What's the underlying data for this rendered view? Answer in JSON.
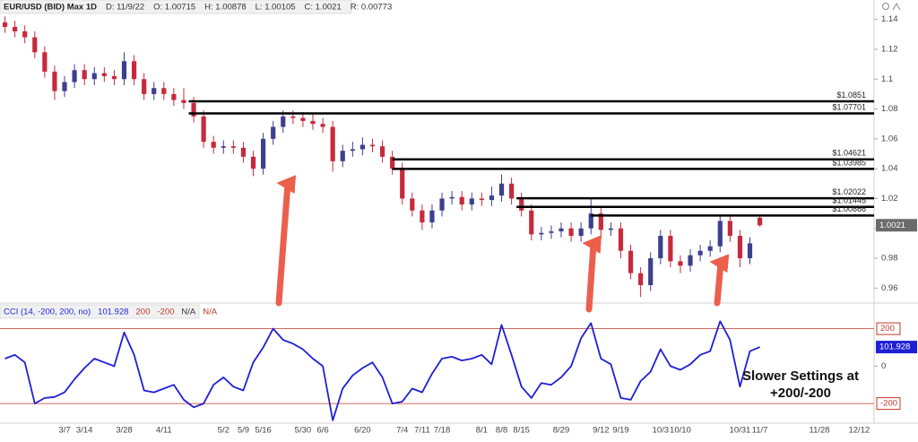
{
  "chart_data": [
    {
      "type": "candlestick",
      "title": "EUR/USD (BID) Max 1D",
      "info": [
        "D: 11/9/22",
        "O: 1.00715",
        "H: 1.00878",
        "L: 1.00105",
        "C: 1.0021",
        "R: 0.00773"
      ],
      "categories": [
        null,
        null,
        null,
        null,
        null,
        null,
        "3/7",
        null,
        "3/14",
        null,
        null,
        null,
        "3/28",
        null,
        null,
        null,
        "4/11",
        null,
        null,
        null,
        null,
        null,
        "5/2",
        null,
        "5/9",
        null,
        "5/16",
        null,
        null,
        null,
        "5/30",
        null,
        "6/6",
        null,
        null,
        null,
        "6/20",
        null,
        null,
        null,
        "7/4",
        null,
        "7/11",
        null,
        "7/18",
        null,
        null,
        null,
        "8/1",
        null,
        "8/8",
        null,
        "8/15",
        null,
        null,
        null,
        "8/29",
        null,
        null,
        null,
        "9/12",
        null,
        "9/19",
        null,
        null,
        null,
        "10/3",
        null,
        "10/10",
        null,
        null,
        null,
        null,
        null,
        "10/31",
        null,
        "11/7",
        null,
        null,
        null,
        null,
        null,
        "11/28",
        null,
        null,
        null,
        "12/12",
        null
      ],
      "open": [
        1.138,
        1.135,
        1.132,
        1.128,
        1.118,
        1.105,
        1.092,
        1.098,
        1.106,
        1.1,
        1.104,
        1.102,
        1.1,
        1.112,
        1.1,
        1.09,
        1.094,
        1.09,
        1.086,
        1.084,
        1.075,
        1.058,
        1.054,
        1.055,
        1.054,
        1.048,
        1.04,
        1.06,
        1.068,
        1.075,
        1.074,
        1.072,
        1.07,
        1.068,
        1.045,
        1.052,
        1.053,
        1.056,
        1.055,
        1.048,
        1.04,
        1.02,
        1.012,
        1.004,
        1.012,
        1.02,
        1.021,
        1.016,
        1.02,
        1.019,
        1.022,
        1.03,
        1.02,
        1.012,
        0.996,
        0.997,
        0.998,
        1.0,
        0.995,
        1.0,
        1.01,
        0.999,
        1.0,
        0.985,
        0.97,
        0.962,
        0.98,
        0.995,
        0.978,
        0.975,
        0.982,
        0.985,
        0.988,
        1.005,
        0.995,
        0.98,
        1.00715,
        null,
        null,
        null,
        null,
        null,
        null,
        null,
        null,
        null,
        null,
        null
      ],
      "high": [
        1.142,
        1.139,
        1.136,
        1.132,
        1.122,
        1.109,
        1.102,
        1.11,
        1.11,
        1.108,
        1.108,
        1.106,
        1.118,
        1.116,
        1.104,
        1.098,
        1.098,
        1.094,
        1.094,
        1.088,
        1.079,
        1.062,
        1.059,
        1.059,
        1.058,
        1.052,
        1.064,
        1.072,
        1.079,
        1.079,
        1.078,
        1.077,
        1.074,
        1.072,
        1.056,
        1.058,
        1.061,
        1.06,
        1.059,
        1.052,
        1.044,
        1.024,
        1.016,
        1.016,
        1.024,
        1.025,
        1.025,
        1.024,
        1.024,
        1.028,
        1.036,
        1.034,
        1.024,
        1.016,
        1.001,
        1.002,
        1.004,
        1.004,
        1.004,
        1.02,
        1.014,
        1.004,
        1.004,
        0.989,
        0.974,
        0.984,
        0.999,
        0.999,
        0.982,
        0.986,
        0.989,
        0.992,
        1.009,
        1.009,
        0.999,
        0.994,
        1.00878,
        null,
        null,
        null,
        null,
        null,
        null,
        null,
        null,
        null,
        null,
        null
      ],
      "low": [
        1.131,
        1.128,
        1.124,
        1.114,
        1.101,
        1.086,
        1.088,
        1.094,
        1.096,
        1.096,
        1.098,
        1.096,
        1.096,
        1.096,
        1.086,
        1.086,
        1.086,
        1.082,
        1.08,
        1.071,
        1.054,
        1.05,
        1.05,
        1.05,
        1.044,
        1.035,
        1.036,
        1.056,
        1.064,
        1.07,
        1.068,
        1.066,
        1.064,
        1.038,
        1.041,
        1.048,
        1.049,
        1.051,
        1.044,
        1.036,
        1.016,
        1.008,
        0.999,
        1.0,
        1.008,
        1.016,
        1.012,
        1.012,
        1.015,
        1.015,
        1.018,
        1.016,
        1.008,
        0.992,
        0.992,
        0.993,
        0.994,
        0.991,
        0.991,
        0.996,
        0.995,
        0.995,
        0.98,
        0.966,
        0.954,
        0.958,
        0.976,
        0.974,
        0.97,
        0.971,
        0.978,
        0.981,
        0.984,
        0.991,
        0.974,
        0.976,
        1.00105,
        null,
        null,
        null,
        null,
        null,
        null,
        null,
        null,
        null,
        null,
        null
      ],
      "close": [
        1.135,
        1.132,
        1.128,
        1.118,
        1.105,
        1.092,
        1.098,
        1.106,
        1.1,
        1.104,
        1.102,
        1.1,
        1.112,
        1.1,
        1.09,
        1.094,
        1.09,
        1.086,
        1.084,
        1.075,
        1.058,
        1.054,
        1.055,
        1.054,
        1.048,
        1.04,
        1.06,
        1.068,
        1.075,
        1.074,
        1.072,
        1.07,
        1.068,
        1.045,
        1.052,
        1.053,
        1.056,
        1.055,
        1.048,
        1.04,
        1.02,
        1.012,
        1.004,
        1.012,
        1.02,
        1.021,
        1.016,
        1.02,
        1.019,
        1.022,
        1.03,
        1.02,
        1.012,
        0.996,
        0.997,
        0.998,
        1.0,
        0.995,
        1.0,
        1.01,
        0.999,
        1.0,
        0.985,
        0.97,
        0.962,
        0.98,
        0.995,
        0.978,
        0.975,
        0.982,
        0.985,
        0.988,
        1.005,
        0.995,
        0.98,
        0.99,
        1.0021,
        null,
        null,
        null,
        null,
        null,
        null,
        null,
        null,
        null,
        null,
        null
      ],
      "up_color": "#3d3f8f",
      "down_color": "#c62a3c",
      "ylim": [
        0.95,
        1.15
      ],
      "yticks": [
        0.96,
        0.98,
        1,
        1.02,
        1.04,
        1.06,
        1.08,
        1.1,
        1.12,
        1.14
      ],
      "levels": [
        {
          "value": 1.0851,
          "label": "$1.0851"
        },
        {
          "value": 1.07701,
          "label": "$1.07701"
        },
        {
          "value": 1.04621,
          "label": "$1.04621"
        },
        {
          "value": 1.03985,
          "label": "$1.03985"
        },
        {
          "value": 1.02022,
          "label": "$1.02022"
        },
        {
          "value": 1.01445,
          "label": "$1.01445"
        },
        {
          "value": 1.00866,
          "label": "$1.00866"
        }
      ],
      "level_color": "#000000"
    },
    {
      "type": "line",
      "name": "CCI (14, -200, 200, no)",
      "values": [
        40,
        60,
        20,
        -200,
        -170,
        -165,
        -140,
        -70,
        -10,
        40,
        20,
        0,
        180,
        60,
        -130,
        -140,
        -120,
        -100,
        -180,
        -220,
        -200,
        -100,
        -60,
        -110,
        -130,
        20,
        100,
        200,
        140,
        120,
        90,
        40,
        0,
        -290,
        -120,
        -50,
        -10,
        20,
        -60,
        -200,
        -190,
        -120,
        -140,
        -40,
        40,
        50,
        30,
        40,
        60,
        10,
        220,
        60,
        -110,
        -170,
        -90,
        -100,
        -60,
        0,
        150,
        230,
        40,
        10,
        -170,
        -180,
        -80,
        -30,
        90,
        0,
        -20,
        10,
        60,
        80,
        240,
        140,
        -110,
        80,
        101.928,
        null,
        null,
        null,
        null,
        null,
        null,
        null,
        null,
        null,
        null,
        null
      ],
      "color": "#1f1fd6",
      "ylim": [
        -300,
        270
      ],
      "yticks": [
        0
      ],
      "levels": [
        {
          "value": 200,
          "label": "200"
        },
        {
          "value": -200,
          "label": "-200"
        }
      ],
      "level_color": "#c0392b",
      "legend_extra": [
        {
          "text": "N/A",
          "color": "#333333"
        },
        {
          "text": "N/A",
          "color": "#c0392b"
        }
      ],
      "annotation": [
        "Slower Settings at",
        "+200/-200"
      ]
    }
  ]
}
